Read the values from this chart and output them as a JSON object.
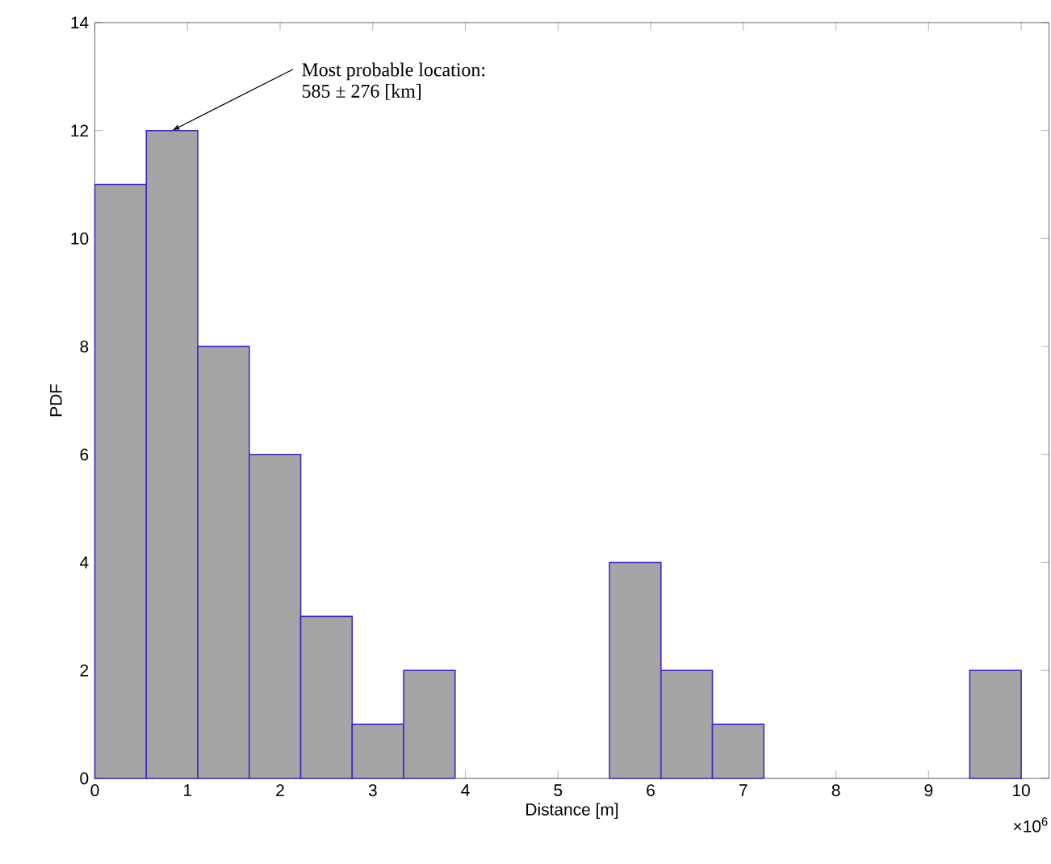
{
  "chart_data": {
    "type": "histogram",
    "xlabel": "Distance [m]",
    "ylabel": "PDF",
    "bins": [
      0,
      0.5556,
      1.1111,
      1.6667,
      2.2222,
      2.7778,
      3.3333,
      3.8889,
      4.4444,
      5,
      5.5556,
      6.1111,
      6.6667,
      7.2222,
      7.7778,
      8.3333,
      8.8889,
      9.4444,
      10
    ],
    "values": [
      11,
      12,
      8,
      6,
      3,
      1,
      2,
      0,
      0,
      0,
      4,
      2,
      1,
      0,
      0,
      0,
      0,
      2
    ],
    "color": "#a5a5a5",
    "xlim": [
      0,
      10.3
    ],
    "ylim": [
      0,
      14
    ],
    "xticks": [
      0,
      1,
      2,
      3,
      4,
      5,
      6,
      7,
      8,
      9,
      10
    ],
    "yticks": [
      0,
      2,
      4,
      6,
      8,
      10,
      12,
      14
    ],
    "grid": false,
    "annotations": [
      {
        "text": "Most probable location:",
        "x": 0.8333,
        "y": 12
      },
      "585 ± 276 [km]",
      "×10$^{6}$"
    ]
  }
}
